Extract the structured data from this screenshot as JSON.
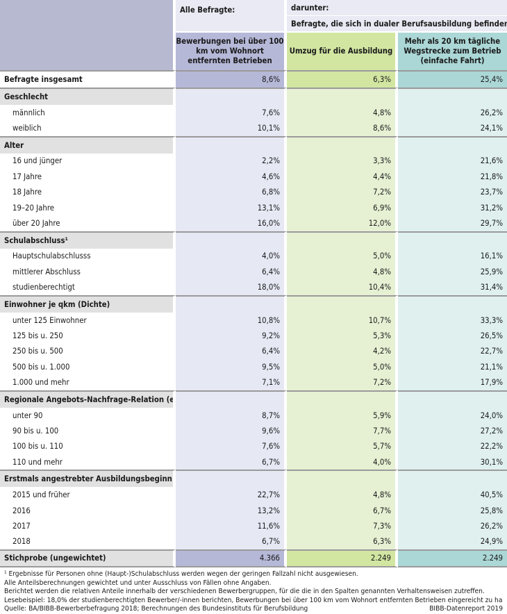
{
  "header": {
    "alle": "Alle Befragte:",
    "darunter": "darunter:",
    "befragte_dual": "Befragte, die sich in dualer Berufsausbildung befinden",
    "col1": "Bewerbungen bei über 100 km vom Wohnort entfernten Betrieben",
    "col2": "Umzug für die Ausbildung",
    "col3": "Mehr als 20 km tägliche Wegstrecke zum Betrieb (einfache Fahrt)"
  },
  "total": {
    "label": "Befragte insgesamt",
    "v1": "8,6%",
    "v2": "6,3%",
    "v3": "25,4%"
  },
  "sections": [
    {
      "title": "Geschlecht",
      "rows": [
        {
          "label": "männlich",
          "v1": "7,6%",
          "v2": "4,8%",
          "v3": "26,2%"
        },
        {
          "label": "weiblich",
          "v1": "10,1%",
          "v2": "8,6%",
          "v3": "24,1%"
        }
      ]
    },
    {
      "title": "Alter",
      "rows": [
        {
          "label": "16 und jünger",
          "v1": "2,2%",
          "v2": "3,3%",
          "v3": "21,6%"
        },
        {
          "label": "17 Jahre",
          "v1": "4,6%",
          "v2": "4,4%",
          "v3": "21,8%"
        },
        {
          "label": "18 Jahre",
          "v1": "6,8%",
          "v2": "7,2%",
          "v3": "23,7%"
        },
        {
          "label": "19–20 Jahre",
          "v1": "13,1%",
          "v2": "6,9%",
          "v3": "31,2%"
        },
        {
          "label": "über 20 Jahre",
          "v1": "16,0%",
          "v2": "12,0%",
          "v3": "29,7%"
        }
      ]
    },
    {
      "title": "Schulabschluss¹",
      "rows": [
        {
          "label": "Hauptschulabschlusss",
          "v1": "4,0%",
          "v2": "5,0%",
          "v3": "16,1%"
        },
        {
          "label": "mittlerer Abschluss",
          "v1": "6,4%",
          "v2": "4,8%",
          "v3": "25,9%"
        },
        {
          "label": "studienberechtigt",
          "v1": "18,0%",
          "v2": "10,4%",
          "v3": "31,4%"
        }
      ]
    },
    {
      "title": "Einwohner je qkm (Dichte)",
      "rows": [
        {
          "label": "unter 125 Einwohner",
          "v1": "10,8%",
          "v2": "10,7%",
          "v3": "33,3%"
        },
        {
          "label": "125 bis u. 250",
          "v1": "9,2%",
          "v2": "5,3%",
          "v3": "26,5%"
        },
        {
          "label": "250 bis u. 500",
          "v1": "6,4%",
          "v2": "4,2%",
          "v3": "22,7%"
        },
        {
          "label": "500 bis u. 1.000",
          "v1": "9,5%",
          "v2": "5,0%",
          "v3": "21,1%"
        },
        {
          "label": "1.000 und mehr",
          "v1": "7,1%",
          "v2": "7,2%",
          "v3": "17,9%"
        }
      ]
    },
    {
      "title": "Regionale Angebots-Nachfrage-Relation (eANR)",
      "rows": [
        {
          "label": "unter 90",
          "v1": "8,7%",
          "v2": "5,9%",
          "v3": "24,0%"
        },
        {
          "label": "90 bis u. 100",
          "v1": "9,6%",
          "v2": "7,7%",
          "v3": "27,2%"
        },
        {
          "label": "100 bis u. 110",
          "v1": "7,6%",
          "v2": "5,7%",
          "v3": "22,2%"
        },
        {
          "label": "110 und mehr",
          "v1": "6,7%",
          "v2": "4,0%",
          "v3": "30,1%"
        }
      ]
    },
    {
      "title": "Erstmals angestrebter Ausbildungsbeginn",
      "rows": [
        {
          "label": "2015 und früher",
          "v1": "22,7%",
          "v2": "4,8%",
          "v3": "40,5%"
        },
        {
          "label": "2016",
          "v1": "13,2%",
          "v2": "6,7%",
          "v3": "25,8%"
        },
        {
          "label": "2017",
          "v1": "11,6%",
          "v2": "7,3%",
          "v3": "26,2%"
        },
        {
          "label": "2018",
          "v1": "6,7%",
          "v2": "6,3%",
          "v3": "24,9%"
        }
      ]
    }
  ],
  "stichprobe": {
    "label": "Stichprobe (ungewichtet)",
    "v1": "4.366",
    "v2": "2.249",
    "v3": "2.249"
  },
  "footnotes": {
    "f1": "¹ Ergebnisse für Personen ohne (Haupt-)Schulabschluss werden wegen der geringen Fallzahl nicht ausgewiesen.",
    "f2": "Alle Anteilsberechnungen gewichtet und unter Ausschluss von Fällen ohne Angaben.",
    "f3": "Berichtet werden die relativen Anteile innerhalb der verschiedenen Bewerbergruppen, für die die in den Spalten genannten Verhaltensweisen zutreffen.",
    "f4": "Lesebeispiel: 18,0% der studienberechtigten Bewerber/-innen berichten, Bewerbungen bei über 100 km vom Wohnort entfernten Betrieben eingereicht zu haben.",
    "source": "Quelle: BA/BIBB-Bewerberbefragung 2018; Berechnungen des Bundesinstituts für Berufsbildung",
    "report": "BIBB-Datenreport 2019"
  }
}
